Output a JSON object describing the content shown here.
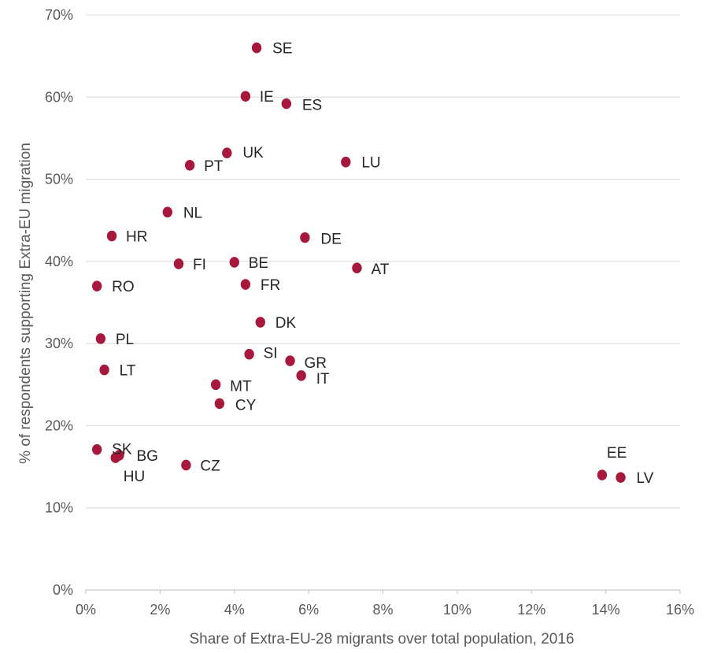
{
  "chart_data": {
    "type": "scatter",
    "title": "",
    "xlabel": "Share of Extra-EU-28 migrants over total population, 2016",
    "ylabel": "% of respondents supporting Extra-EU migration",
    "xlim": [
      0,
      16
    ],
    "ylim": [
      0,
      70
    ],
    "x_unit": "%",
    "y_unit": "%",
    "x_ticks": [
      "0%",
      "2%",
      "4%",
      "6%",
      "8%",
      "10%",
      "12%",
      "14%",
      "16%"
    ],
    "y_ticks": [
      "0%",
      "10%",
      "20%",
      "30%",
      "40%",
      "50%",
      "60%",
      "70%"
    ],
    "grid": "horizontal",
    "legend": "none",
    "marker_color": "#a6193c",
    "points": [
      {
        "label": "SE",
        "x": 4.6,
        "y": 66.0
      },
      {
        "label": "IE",
        "x": 4.3,
        "y": 60.1
      },
      {
        "label": "ES",
        "x": 5.4,
        "y": 59.2
      },
      {
        "label": "UK",
        "x": 3.8,
        "y": 53.2
      },
      {
        "label": "PT",
        "x": 2.8,
        "y": 51.7
      },
      {
        "label": "LU",
        "x": 7.0,
        "y": 52.1
      },
      {
        "label": "NL",
        "x": 2.2,
        "y": 46.0
      },
      {
        "label": "HR",
        "x": 0.7,
        "y": 43.1
      },
      {
        "label": "DE",
        "x": 5.9,
        "y": 42.9
      },
      {
        "label": "FI",
        "x": 2.5,
        "y": 39.7
      },
      {
        "label": "BE",
        "x": 4.0,
        "y": 39.9
      },
      {
        "label": "AT",
        "x": 7.3,
        "y": 39.2
      },
      {
        "label": "RO",
        "x": 0.3,
        "y": 37.0
      },
      {
        "label": "FR",
        "x": 4.3,
        "y": 37.2
      },
      {
        "label": "DK",
        "x": 4.7,
        "y": 32.6
      },
      {
        "label": "PL",
        "x": 0.4,
        "y": 30.6
      },
      {
        "label": "SI",
        "x": 4.4,
        "y": 28.7
      },
      {
        "label": "GR",
        "x": 5.5,
        "y": 27.9
      },
      {
        "label": "IT",
        "x": 5.8,
        "y": 26.1
      },
      {
        "label": "LT",
        "x": 0.5,
        "y": 26.8
      },
      {
        "label": "MT",
        "x": 3.5,
        "y": 25.0
      },
      {
        "label": "CY",
        "x": 3.6,
        "y": 22.7
      },
      {
        "label": "SK",
        "x": 0.3,
        "y": 17.1
      },
      {
        "label": "BG",
        "x": 0.9,
        "y": 16.4
      },
      {
        "label": "HU",
        "x": 0.8,
        "y": 16.1
      },
      {
        "label": "CZ",
        "x": 2.7,
        "y": 15.2
      },
      {
        "label": "EE",
        "x": 13.9,
        "y": 14.0
      },
      {
        "label": "LV",
        "x": 14.4,
        "y": 13.7
      }
    ]
  }
}
